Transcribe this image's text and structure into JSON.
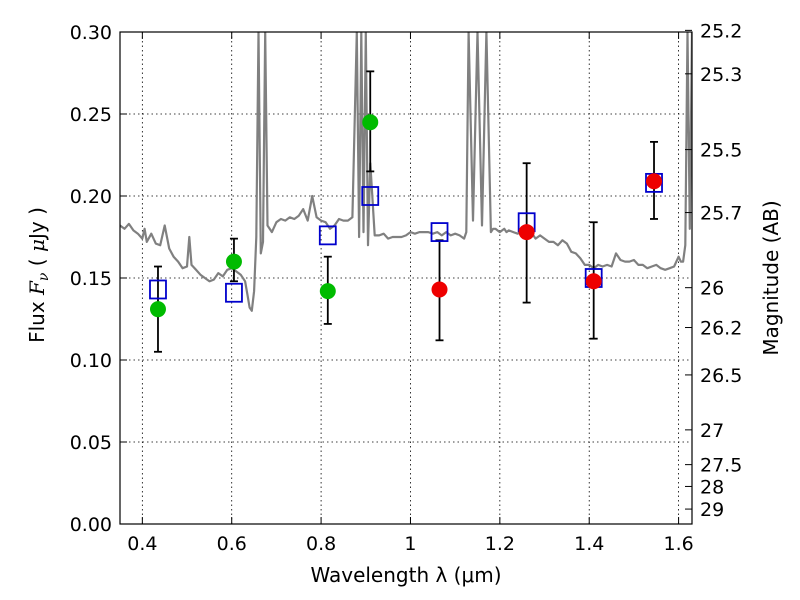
{
  "chart_data": {
    "type": "scatter",
    "xlabel": "Wavelength  λ (μm)",
    "ylabel_parts": [
      "Flux  ",
      "F",
      "ν",
      "  ( ",
      "μ",
      "Jy )"
    ],
    "ylabel_right": "Magnitude (AB)",
    "xlim": [
      0.35,
      1.63
    ],
    "ylim": [
      0.0,
      0.3
    ],
    "grid": true,
    "x_ticks": [
      0.4,
      0.6,
      0.8,
      1.0,
      1.2,
      1.4,
      1.6
    ],
    "x_tick_labels": [
      "0.4",
      "0.6",
      "0.8",
      "1",
      "1.2",
      "1.4",
      "1.6"
    ],
    "y_ticks": [
      0.0,
      0.05,
      0.1,
      0.15,
      0.2,
      0.25,
      0.3
    ],
    "y_tick_labels": [
      "0.00",
      "0.05",
      "0.10",
      "0.15",
      "0.20",
      "0.25",
      "0.30"
    ],
    "right_ticks": [
      {
        "label": "25.2",
        "flux": 0.301
      },
      {
        "label": "25.3",
        "flux": 0.2745
      },
      {
        "label": "25.5",
        "flux": 0.2283
      },
      {
        "label": "25.7",
        "flux": 0.1899
      },
      {
        "label": "26",
        "flux": 0.1441
      },
      {
        "label": "26.2",
        "flux": 0.1198
      },
      {
        "label": "26.5",
        "flux": 0.0909
      },
      {
        "label": "27",
        "flux": 0.0574
      },
      {
        "label": "27.5",
        "flux": 0.0362
      },
      {
        "label": "28",
        "flux": 0.0229
      },
      {
        "label": "29",
        "flux": 0.0091
      }
    ],
    "model_spectrum": {
      "color": "#808080",
      "x": [
        0.35,
        0.36,
        0.37,
        0.38,
        0.39,
        0.4,
        0.405,
        0.41,
        0.42,
        0.43,
        0.44,
        0.45,
        0.46,
        0.47,
        0.48,
        0.49,
        0.5,
        0.505,
        0.51,
        0.52,
        0.53,
        0.54,
        0.55,
        0.56,
        0.57,
        0.58,
        0.59,
        0.6,
        0.61,
        0.62,
        0.63,
        0.635,
        0.64,
        0.645,
        0.65,
        0.655,
        0.66,
        0.665,
        0.67,
        0.675,
        0.68,
        0.69,
        0.7,
        0.71,
        0.72,
        0.73,
        0.74,
        0.75,
        0.76,
        0.77,
        0.78,
        0.79,
        0.8,
        0.81,
        0.82,
        0.83,
        0.84,
        0.85,
        0.86,
        0.87,
        0.88,
        0.885,
        0.89,
        0.895,
        0.9,
        0.905,
        0.91,
        0.92,
        0.93,
        0.94,
        0.95,
        0.96,
        0.97,
        0.98,
        0.99,
        1.0,
        1.01,
        1.02,
        1.03,
        1.04,
        1.05,
        1.06,
        1.07,
        1.08,
        1.09,
        1.1,
        1.11,
        1.12,
        1.125,
        1.13,
        1.14,
        1.15,
        1.16,
        1.17,
        1.18,
        1.185,
        1.19,
        1.2,
        1.21,
        1.215,
        1.22,
        1.23,
        1.24,
        1.25,
        1.26,
        1.27,
        1.28,
        1.29,
        1.3,
        1.31,
        1.32,
        1.33,
        1.34,
        1.35,
        1.36,
        1.37,
        1.38,
        1.39,
        1.4,
        1.41,
        1.42,
        1.43,
        1.44,
        1.45,
        1.46,
        1.47,
        1.48,
        1.49,
        1.5,
        1.51,
        1.52,
        1.53,
        1.54,
        1.55,
        1.56,
        1.57,
        1.58,
        1.59,
        1.6,
        1.605,
        1.61,
        1.615,
        1.62,
        1.625,
        1.63
      ],
      "y": [
        0.182,
        0.18,
        0.183,
        0.179,
        0.177,
        0.174,
        0.18,
        0.172,
        0.177,
        0.171,
        0.17,
        0.182,
        0.168,
        0.163,
        0.16,
        0.156,
        0.157,
        0.175,
        0.158,
        0.155,
        0.152,
        0.15,
        0.148,
        0.149,
        0.153,
        0.151,
        0.155,
        0.156,
        0.154,
        0.152,
        0.148,
        0.14,
        0.132,
        0.13,
        0.142,
        0.175,
        0.3,
        0.165,
        0.172,
        0.3,
        0.182,
        0.178,
        0.184,
        0.186,
        0.185,
        0.187,
        0.186,
        0.188,
        0.192,
        0.185,
        0.2,
        0.187,
        0.185,
        0.184,
        0.18,
        0.182,
        0.186,
        0.185,
        0.185,
        0.187,
        0.3,
        0.175,
        0.3,
        0.178,
        0.3,
        0.17,
        0.22,
        0.176,
        0.176,
        0.177,
        0.174,
        0.175,
        0.175,
        0.175,
        0.176,
        0.178,
        0.177,
        0.178,
        0.178,
        0.178,
        0.177,
        0.178,
        0.176,
        0.178,
        0.176,
        0.177,
        0.176,
        0.174,
        0.178,
        0.3,
        0.185,
        0.3,
        0.182,
        0.3,
        0.178,
        0.18,
        0.18,
        0.178,
        0.18,
        0.178,
        0.179,
        0.178,
        0.177,
        0.179,
        0.182,
        0.178,
        0.174,
        0.176,
        0.174,
        0.172,
        0.172,
        0.17,
        0.173,
        0.171,
        0.166,
        0.165,
        0.162,
        0.158,
        0.158,
        0.156,
        0.158,
        0.157,
        0.158,
        0.157,
        0.165,
        0.161,
        0.16,
        0.16,
        0.161,
        0.158,
        0.158,
        0.156,
        0.157,
        0.158,
        0.156,
        0.155,
        0.156,
        0.157,
        0.163,
        0.16,
        0.16,
        0.17,
        0.3,
        0.18,
        0.3
      ]
    },
    "series": [
      {
        "marker": "square",
        "color": "#0000cc",
        "x": [
          0.435,
          0.605,
          0.815,
          0.91,
          1.065,
          1.26,
          1.41,
          1.545
        ],
        "y": [
          0.143,
          0.141,
          0.176,
          0.2,
          0.178,
          0.184,
          0.15,
          0.208
        ]
      },
      {
        "marker": "circle",
        "color": "#00bb00",
        "x": [
          0.435,
          0.605,
          0.815,
          0.91
        ],
        "y": [
          0.131,
          0.16,
          0.142,
          0.245
        ],
        "yerr_low": [
          0.105,
          0.148,
          0.122,
          0.215
        ],
        "yerr_high": [
          0.157,
          0.174,
          0.163,
          0.276
        ]
      },
      {
        "marker": "circle",
        "color": "#ee0000",
        "x": [
          1.065,
          1.26,
          1.41,
          1.545
        ],
        "y": [
          0.143,
          0.178,
          0.148,
          0.209
        ],
        "yerr_low": [
          0.112,
          0.135,
          0.113,
          0.186
        ],
        "yerr_high": [
          0.173,
          0.22,
          0.184,
          0.233
        ]
      }
    ]
  }
}
